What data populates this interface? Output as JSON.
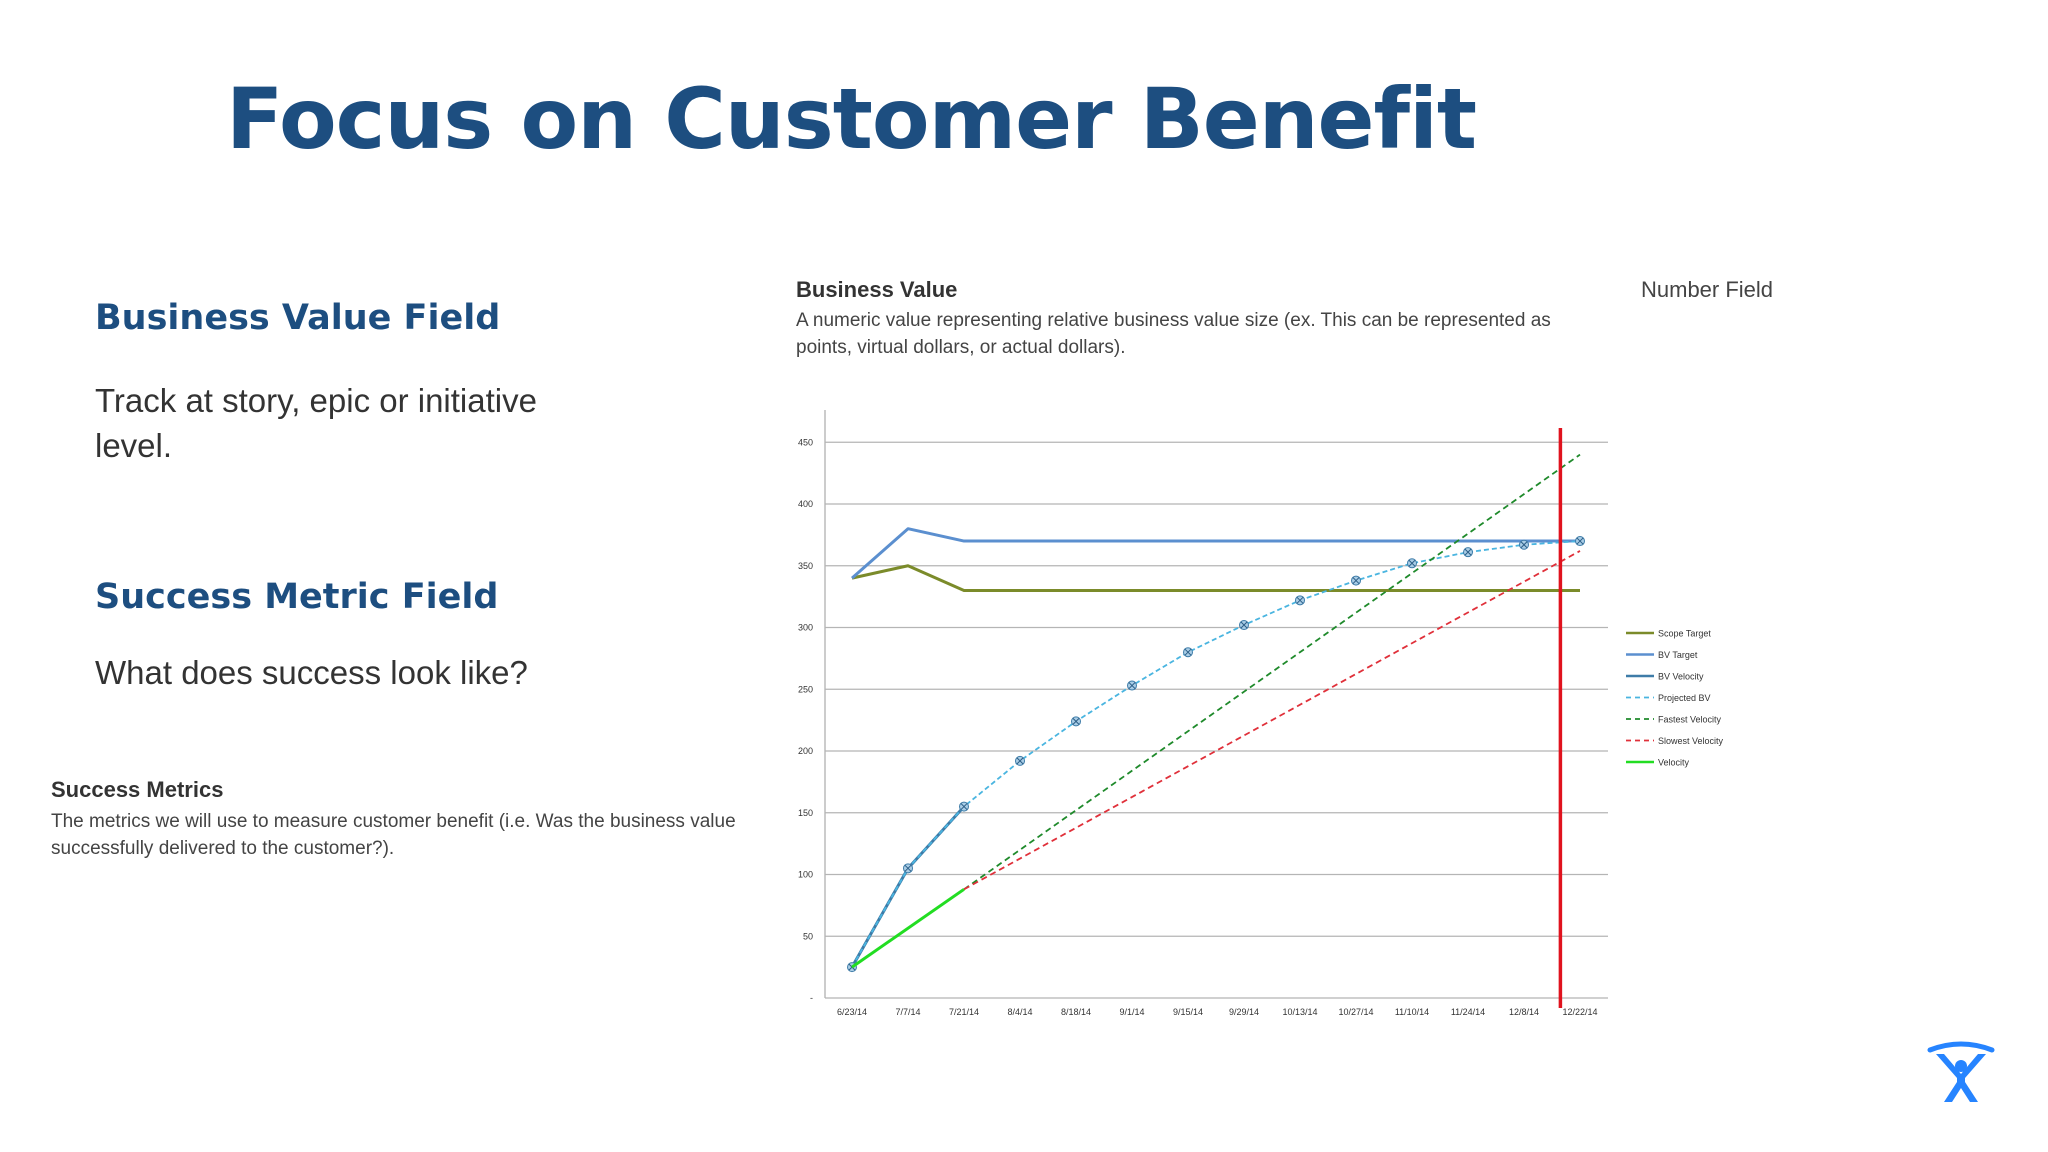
{
  "slide": {
    "title": "Focus on Customer Benefit"
  },
  "business_value_section": {
    "heading": "Business Value Field",
    "text": "Track at story, epic or initiative level."
  },
  "success_metric_section": {
    "heading": "Success Metric Field",
    "text": "What does success look like?"
  },
  "success_metrics_field": {
    "title": "Success Metrics",
    "description": "The metrics we will use to measure customer benefit (i.e. Was the business value successfully delivered to the customer?)."
  },
  "business_value_field": {
    "title": "Business Value",
    "description": "A numeric value representing relative business value size (ex. This can be represented as points, virtual dollars, or actual dollars).",
    "field_type": "Number Field"
  },
  "logo": {
    "icon": "atlassian-logo-icon",
    "color": "#2684ff"
  },
  "chart_data": {
    "type": "line",
    "categories": [
      "6/23/14",
      "7/7/14",
      "7/21/14",
      "8/4/14",
      "8/18/14",
      "9/1/14",
      "9/15/14",
      "9/29/14",
      "10/13/14",
      "10/27/14",
      "11/10/14",
      "11/24/14",
      "12/8/14",
      "12/22/14"
    ],
    "y_tick_labels": [
      "-",
      "50",
      "100",
      "150",
      "200",
      "250",
      "300",
      "350",
      "400",
      "450"
    ],
    "ylim": [
      0,
      480
    ],
    "grid": true,
    "legend_position": "right",
    "current_date_marker": {
      "category_position": 12.65,
      "color": "#e0131e"
    },
    "series": [
      {
        "name": "Scope Target",
        "color": "#7b8b2a",
        "style": "solid",
        "points": [
          [
            0,
            340
          ],
          [
            1,
            350
          ],
          [
            2,
            330
          ],
          [
            13,
            330
          ]
        ]
      },
      {
        "name": "BV Target",
        "color": "#5b8fcf",
        "style": "solid",
        "points": [
          [
            0,
            340
          ],
          [
            1,
            380
          ],
          [
            2,
            370
          ],
          [
            13,
            370
          ]
        ]
      },
      {
        "name": "BV Velocity",
        "color": "#3e7ca8",
        "style": "solid",
        "points": [
          [
            0,
            25
          ],
          [
            1,
            105
          ],
          [
            2,
            155
          ]
        ]
      },
      {
        "name": "Projected BV",
        "color": "#4ab5e0",
        "style": "dashed",
        "markers": true,
        "points": [
          [
            0,
            25
          ],
          [
            1,
            105
          ],
          [
            2,
            155
          ],
          [
            3,
            192
          ],
          [
            4,
            224
          ],
          [
            5,
            253
          ],
          [
            6,
            280
          ],
          [
            7,
            302
          ],
          [
            8,
            322
          ],
          [
            9,
            338
          ],
          [
            10,
            352
          ],
          [
            11,
            361
          ],
          [
            12,
            367
          ],
          [
            13,
            370
          ]
        ]
      },
      {
        "name": "Fastest Velocity",
        "color": "#1f8a2b",
        "style": "dashed",
        "points": [
          [
            2,
            88
          ],
          [
            13,
            440
          ]
        ]
      },
      {
        "name": "Slowest Velocity",
        "color": "#e0303a",
        "style": "dashed",
        "points": [
          [
            2,
            88
          ],
          [
            13,
            362
          ]
        ]
      },
      {
        "name": "Velocity",
        "color": "#22dd22",
        "style": "solid",
        "points": [
          [
            0,
            25
          ],
          [
            2,
            88
          ]
        ]
      }
    ]
  }
}
